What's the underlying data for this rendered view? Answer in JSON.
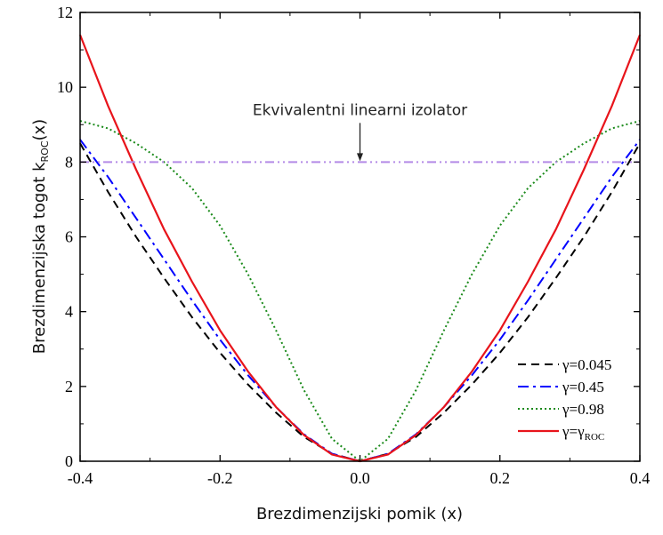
{
  "chart_data": {
    "type": "line",
    "xlabel": "Brezdimenzijski pomik (x)",
    "ylabel": "Brezdimenzijska togot k",
    "ylabel_sub": "ROC",
    "ylabel_tail": "(x)",
    "xlim": [
      -0.4,
      0.4
    ],
    "ylim": [
      0,
      12
    ],
    "xticks": [
      "-0.4",
      "-0.2",
      "0.0",
      "0.2",
      "0.4"
    ],
    "yticks": [
      "0",
      "2",
      "4",
      "6",
      "8",
      "10",
      "12"
    ],
    "xtick_values": [
      -0.4,
      -0.2,
      0.0,
      0.2,
      0.4
    ],
    "ytick_values": [
      0,
      2,
      4,
      6,
      8,
      10,
      12
    ],
    "grid": false,
    "legend_position": "bottom-right",
    "annotation": {
      "text": "Ekvivalentni linearni izolator",
      "arrow_to": [
        0.0,
        8.0
      ]
    },
    "series": [
      {
        "name": "γ=0.045",
        "style": "dashed",
        "color": "#000000",
        "x": [
          -0.4,
          -0.36,
          -0.32,
          -0.28,
          -0.24,
          -0.2,
          -0.16,
          -0.12,
          -0.08,
          -0.04,
          0.0,
          0.04,
          0.08,
          0.12,
          0.16,
          0.2,
          0.24,
          0.28,
          0.32,
          0.36,
          0.4
        ],
        "y": [
          8.5,
          7.2,
          6.0,
          4.9,
          3.85,
          2.9,
          2.05,
          1.3,
          0.65,
          0.2,
          0.0,
          0.2,
          0.65,
          1.3,
          2.05,
          2.9,
          3.85,
          4.9,
          6.0,
          7.2,
          8.5
        ]
      },
      {
        "name": "γ=0.45",
        "style": "dashdot",
        "color": "#0000ff",
        "x": [
          -0.4,
          -0.36,
          -0.32,
          -0.28,
          -0.24,
          -0.2,
          -0.16,
          -0.12,
          -0.08,
          -0.04,
          0.0,
          0.04,
          0.08,
          0.12,
          0.16,
          0.2,
          0.24,
          0.28,
          0.32,
          0.36,
          0.4
        ],
        "y": [
          8.6,
          7.6,
          6.5,
          5.4,
          4.3,
          3.25,
          2.3,
          1.45,
          0.72,
          0.2,
          0.0,
          0.2,
          0.72,
          1.45,
          2.3,
          3.25,
          4.3,
          5.4,
          6.5,
          7.6,
          8.6
        ]
      },
      {
        "name": "γ=0.98",
        "style": "dotted",
        "color": "#1a8a1a",
        "x": [
          -0.4,
          -0.36,
          -0.32,
          -0.28,
          -0.24,
          -0.2,
          -0.16,
          -0.12,
          -0.08,
          -0.04,
          0.0,
          0.04,
          0.08,
          0.12,
          0.16,
          0.2,
          0.24,
          0.28,
          0.32,
          0.36,
          0.4
        ],
        "y": [
          9.1,
          8.9,
          8.5,
          8.0,
          7.3,
          6.3,
          5.0,
          3.5,
          1.9,
          0.6,
          0.0,
          0.6,
          1.9,
          3.5,
          5.0,
          6.3,
          7.3,
          8.0,
          8.5,
          8.9,
          9.1
        ]
      },
      {
        "name": "γ=γ",
        "name_sub": "ROC",
        "style": "solid",
        "color": "#e8141b",
        "x": [
          -0.4,
          -0.36,
          -0.32,
          -0.28,
          -0.24,
          -0.2,
          -0.16,
          -0.12,
          -0.08,
          -0.04,
          0.0,
          0.04,
          0.08,
          0.12,
          0.16,
          0.2,
          0.24,
          0.28,
          0.32,
          0.36,
          0.4
        ],
        "y": [
          11.4,
          9.5,
          7.8,
          6.2,
          4.8,
          3.5,
          2.4,
          1.45,
          0.7,
          0.18,
          0.0,
          0.18,
          0.7,
          1.45,
          2.4,
          3.5,
          4.8,
          6.2,
          7.8,
          9.5,
          11.4
        ]
      },
      {
        "style": "dashdotdot",
        "color": "#b48ae6",
        "x": [
          -0.4,
          0.4
        ],
        "y": [
          8.0,
          8.0
        ]
      }
    ]
  }
}
